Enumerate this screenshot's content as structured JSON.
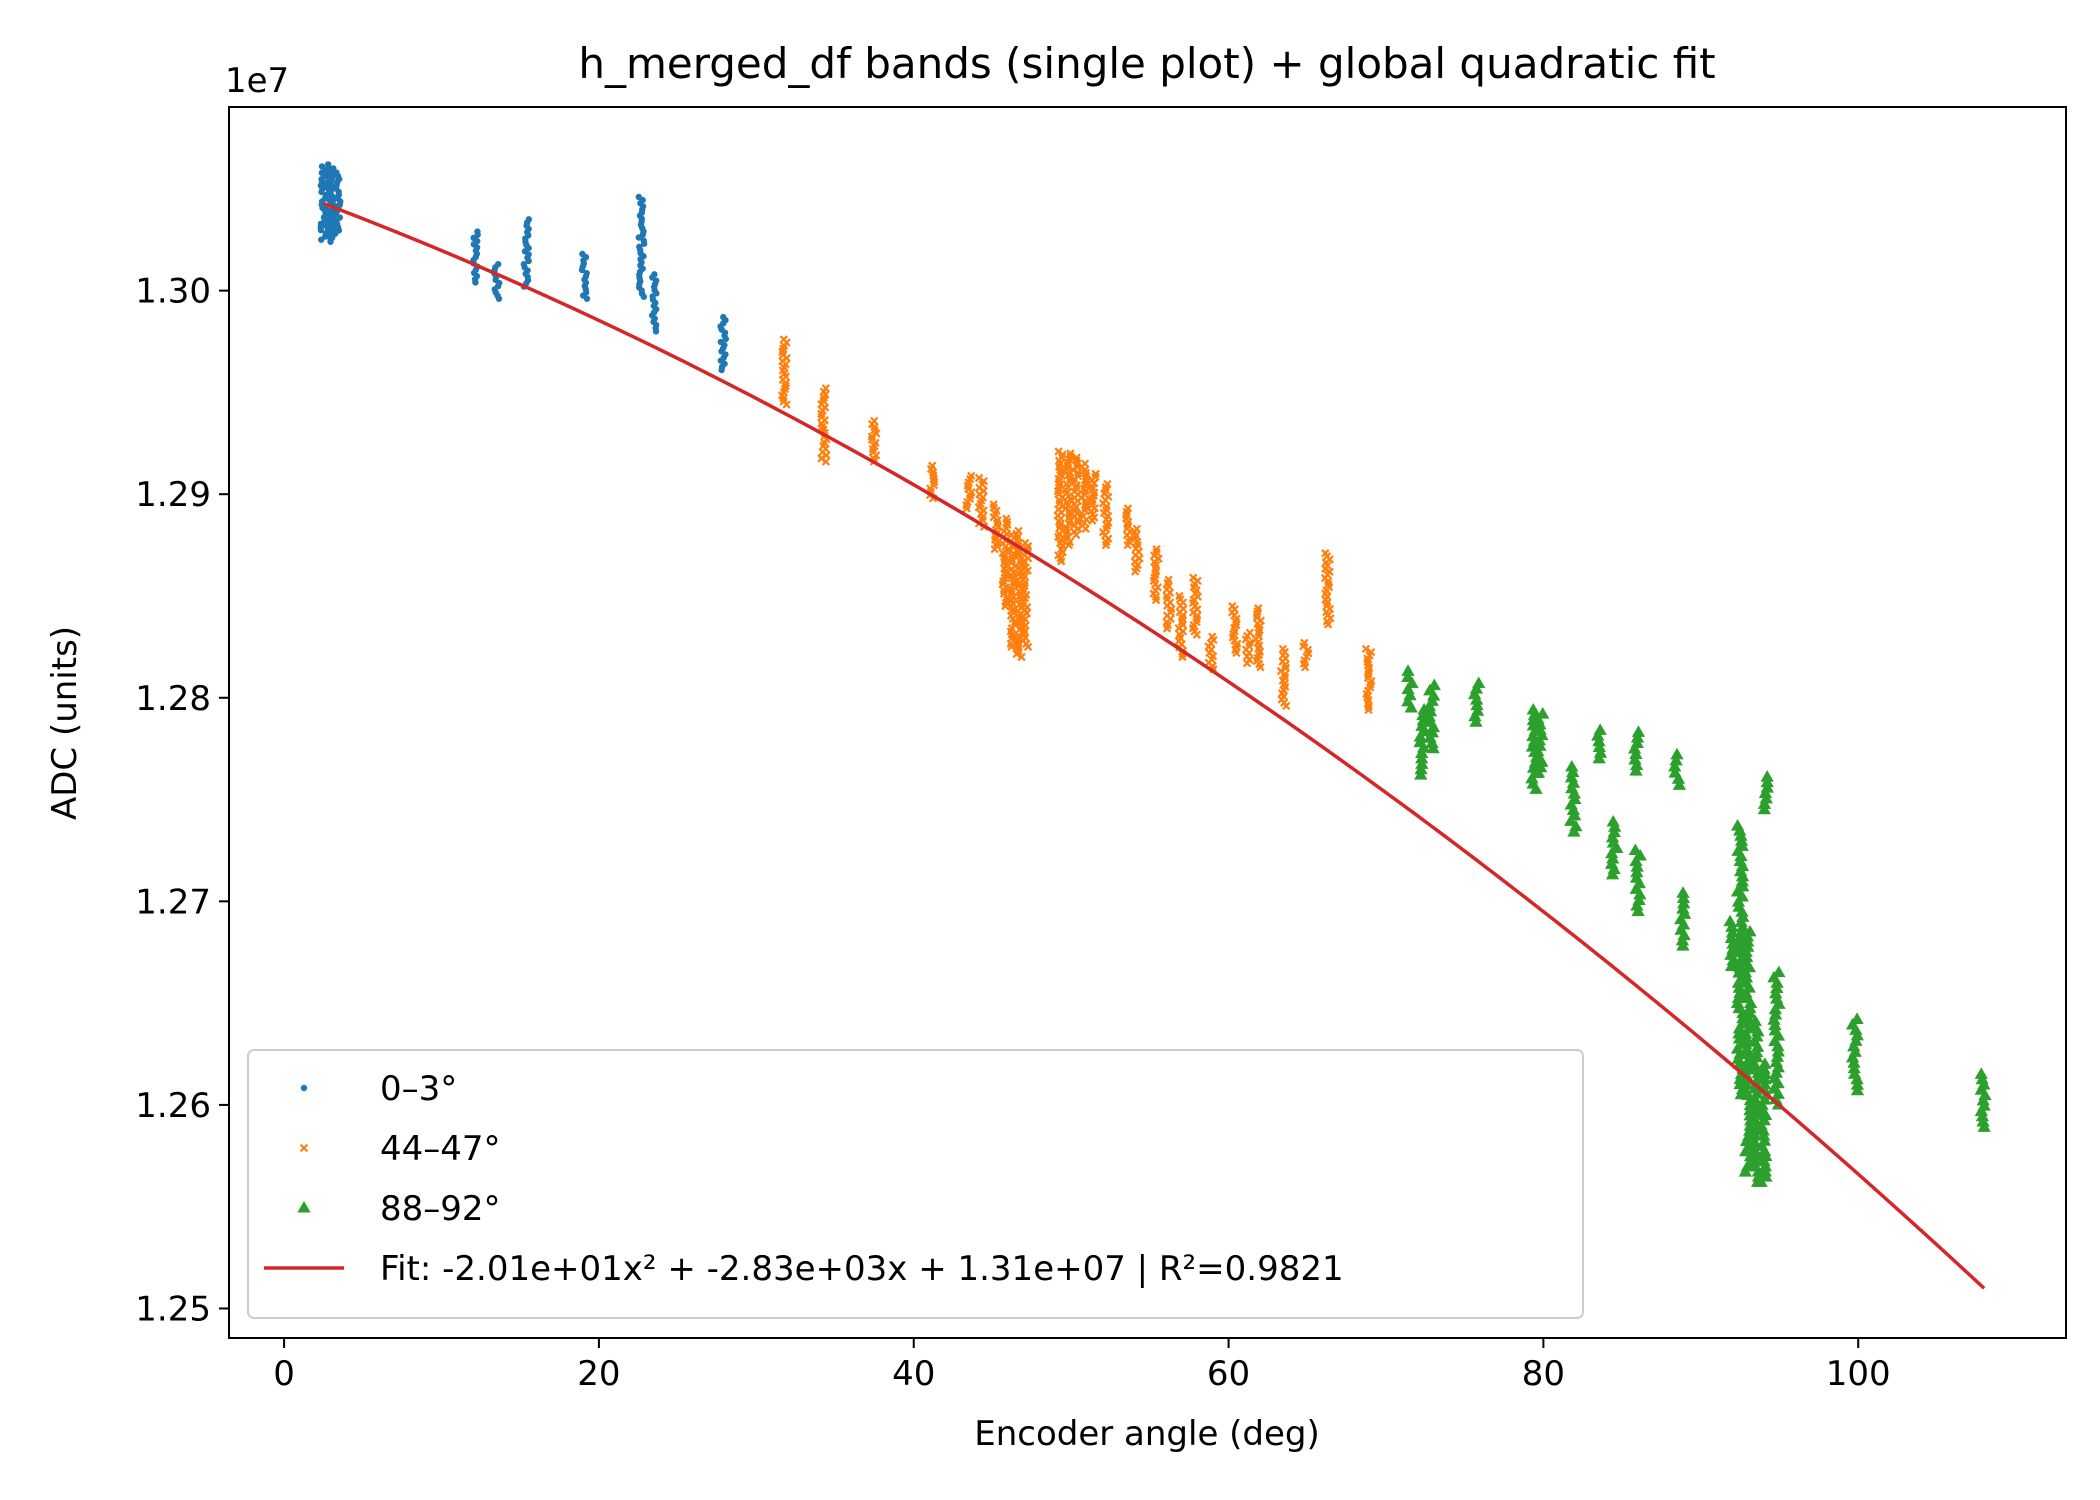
{
  "chart_data": {
    "type": "scatter",
    "title": "h_merged_df bands (single plot) + global quadratic fit",
    "xlabel": "Encoder angle (deg)",
    "ylabel": "ADC (units)",
    "y_offset_label": "1e7",
    "xlim": [
      -3.5,
      113.2
    ],
    "ylim": [
      12.4855,
      13.0902
    ],
    "y_unit_scale": 1000000,
    "x_ticks": [
      0,
      20,
      40,
      60,
      80,
      100
    ],
    "x_tick_labels": [
      "0",
      "20",
      "40",
      "60",
      "80",
      "100"
    ],
    "y_ticks": [
      12.5,
      12.6,
      12.7,
      12.8,
      12.9,
      13.0
    ],
    "y_tick_labels": [
      "1.25",
      "1.26",
      "1.27",
      "1.28",
      "1.29",
      "1.30"
    ],
    "grid": false,
    "legend_position": "lower-left",
    "colors": {
      "band1": "#1f77b4",
      "band2": "#ff7f0e",
      "band3": "#2ca02c",
      "fit": "#d62728"
    },
    "series": [
      {
        "name": "0–3°",
        "marker": "dot",
        "clusters": [
          {
            "x": 2.5,
            "ymin": 13.025,
            "ymax": 13.061
          },
          {
            "x": 2.8,
            "ymin": 13.024,
            "ymax": 13.062
          },
          {
            "x": 3.1,
            "ymin": 13.026,
            "ymax": 13.06
          },
          {
            "x": 3.4,
            "ymin": 13.028,
            "ymax": 13.058
          },
          {
            "x": 12.2,
            "ymin": 13.004,
            "ymax": 13.029
          },
          {
            "x": 13.5,
            "ymin": 12.996,
            "ymax": 13.013
          },
          {
            "x": 15.4,
            "ymin": 13.002,
            "ymax": 13.035
          },
          {
            "x": 19.1,
            "ymin": 12.996,
            "ymax": 13.018
          },
          {
            "x": 22.7,
            "ymin": 12.997,
            "ymax": 13.046
          },
          {
            "x": 23.5,
            "ymin": 12.98,
            "ymax": 13.008
          },
          {
            "x": 27.9,
            "ymin": 12.961,
            "ymax": 12.987
          }
        ]
      },
      {
        "name": "44–47°",
        "marker": "x",
        "clusters": [
          {
            "x": 31.8,
            "ymin": 12.944,
            "ymax": 12.976
          },
          {
            "x": 34.3,
            "ymin": 12.916,
            "ymax": 12.952
          },
          {
            "x": 37.5,
            "ymin": 12.916,
            "ymax": 12.936
          },
          {
            "x": 41.2,
            "ymin": 12.898,
            "ymax": 12.914
          },
          {
            "x": 43.5,
            "ymin": 12.893,
            "ymax": 12.909
          },
          {
            "x": 44.3,
            "ymin": 12.884,
            "ymax": 12.908
          },
          {
            "x": 45.2,
            "ymin": 12.873,
            "ymax": 12.895
          },
          {
            "x": 45.8,
            "ymin": 12.845,
            "ymax": 12.888
          },
          {
            "x": 46.3,
            "ymin": 12.825,
            "ymax": 12.88
          },
          {
            "x": 46.7,
            "ymin": 12.82,
            "ymax": 12.882
          },
          {
            "x": 47.1,
            "ymin": 12.825,
            "ymax": 12.876
          },
          {
            "x": 49.3,
            "ymin": 12.867,
            "ymax": 12.921
          },
          {
            "x": 49.8,
            "ymin": 12.875,
            "ymax": 12.92
          },
          {
            "x": 50.3,
            "ymin": 12.88,
            "ymax": 12.918
          },
          {
            "x": 50.8,
            "ymin": 12.883,
            "ymax": 12.915
          },
          {
            "x": 51.4,
            "ymin": 12.887,
            "ymax": 12.91
          },
          {
            "x": 52.2,
            "ymin": 12.875,
            "ymax": 12.905
          },
          {
            "x": 53.6,
            "ymin": 12.875,
            "ymax": 12.893
          },
          {
            "x": 54.2,
            "ymin": 12.862,
            "ymax": 12.883
          },
          {
            "x": 55.4,
            "ymin": 12.848,
            "ymax": 12.873
          },
          {
            "x": 56.2,
            "ymin": 12.834,
            "ymax": 12.858
          },
          {
            "x": 57.0,
            "ymin": 12.82,
            "ymax": 12.85
          },
          {
            "x": 57.9,
            "ymin": 12.831,
            "ymax": 12.859
          },
          {
            "x": 58.9,
            "ymin": 12.814,
            "ymax": 12.83
          },
          {
            "x": 60.4,
            "ymin": 12.822,
            "ymax": 12.845
          },
          {
            "x": 61.2,
            "ymin": 12.817,
            "ymax": 12.832
          },
          {
            "x": 61.9,
            "ymin": 12.815,
            "ymax": 12.844
          },
          {
            "x": 63.5,
            "ymin": 12.796,
            "ymax": 12.824
          },
          {
            "x": 64.9,
            "ymin": 12.815,
            "ymax": 12.827
          },
          {
            "x": 66.3,
            "ymin": 12.836,
            "ymax": 12.871
          },
          {
            "x": 68.9,
            "ymin": 12.794,
            "ymax": 12.824
          }
        ]
      },
      {
        "name": "88–92°",
        "marker": "triangle",
        "clusters": [
          {
            "x": 71.5,
            "ymin": 12.795,
            "ymax": 12.813
          },
          {
            "x": 72.3,
            "ymin": 12.762,
            "ymax": 12.794
          },
          {
            "x": 72.9,
            "ymin": 12.775,
            "ymax": 12.806
          },
          {
            "x": 75.8,
            "ymin": 12.788,
            "ymax": 12.807
          },
          {
            "x": 79.4,
            "ymin": 12.755,
            "ymax": 12.794
          },
          {
            "x": 79.8,
            "ymin": 12.763,
            "ymax": 12.792
          },
          {
            "x": 81.9,
            "ymin": 12.734,
            "ymax": 12.766
          },
          {
            "x": 83.5,
            "ymin": 12.77,
            "ymax": 12.784
          },
          {
            "x": 85.9,
            "ymin": 12.764,
            "ymax": 12.783
          },
          {
            "x": 84.5,
            "ymin": 12.713,
            "ymax": 12.739
          },
          {
            "x": 86.0,
            "ymin": 12.695,
            "ymax": 12.725
          },
          {
            "x": 88.5,
            "ymin": 12.757,
            "ymax": 12.772
          },
          {
            "x": 88.9,
            "ymin": 12.678,
            "ymax": 12.704
          },
          {
            "x": 91.9,
            "ymin": 12.668,
            "ymax": 12.69
          },
          {
            "x": 92.5,
            "ymin": 12.605,
            "ymax": 12.737
          },
          {
            "x": 93.0,
            "ymin": 12.567,
            "ymax": 12.685
          },
          {
            "x": 93.5,
            "ymin": 12.562,
            "ymax": 12.641
          },
          {
            "x": 94.0,
            "ymin": 12.562,
            "ymax": 12.62
          },
          {
            "x": 94.1,
            "ymin": 12.745,
            "ymax": 12.761
          },
          {
            "x": 94.8,
            "ymin": 12.6,
            "ymax": 12.665
          },
          {
            "x": 99.8,
            "ymin": 12.607,
            "ymax": 12.642
          },
          {
            "x": 107.9,
            "ymin": 12.589,
            "ymax": 12.615
          }
        ]
      },
      {
        "name": "Fit: -2.01e+01x² + -2.83e+03x + 1.31e+07 | R²=0.9821",
        "marker": "line",
        "fit": {
          "a": -20.1,
          "b": -2830,
          "c": 13050000,
          "x_start": 2.5,
          "x_end": 108.0
        }
      }
    ]
  }
}
